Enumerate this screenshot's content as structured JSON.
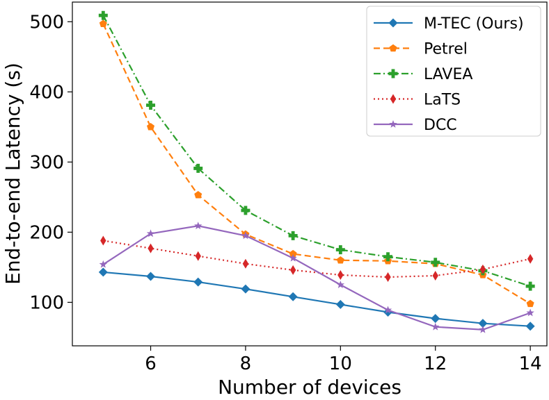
{
  "chart_data": {
    "type": "line",
    "title": "",
    "xlabel": "Number of devices",
    "ylabel": "End-to-end Latency (s)",
    "x": [
      5,
      6,
      7,
      8,
      9,
      10,
      11,
      12,
      13,
      14
    ],
    "xlim": [
      4.35,
      14.35
    ],
    "ylim": [
      38,
      528
    ],
    "xticks": [
      6,
      8,
      10,
      12,
      14
    ],
    "yticks": [
      100,
      200,
      300,
      400,
      500
    ],
    "grid": false,
    "legend_position": "top-right",
    "series": [
      {
        "name": "M-TEC (Ours)",
        "color": "#1f77b4",
        "linestyle": "solid",
        "marker": "diamond",
        "values": [
          143,
          137,
          129,
          119,
          108,
          97,
          86,
          77,
          70,
          66
        ]
      },
      {
        "name": "Petrel",
        "color": "#ff7f0e",
        "linestyle": "dashed",
        "marker": "pentagon",
        "values": [
          497,
          350,
          253,
          197,
          169,
          160,
          159,
          155,
          139,
          98
        ]
      },
      {
        "name": "LAVEA",
        "color": "#2ca02c",
        "linestyle": "dashdot",
        "marker": "plus",
        "values": [
          509,
          381,
          291,
          231,
          195,
          175,
          165,
          157,
          145,
          123
        ]
      },
      {
        "name": "LaTS",
        "color": "#d62728",
        "linestyle": "dotted",
        "marker": "thin-diamond",
        "values": [
          188,
          177,
          166,
          155,
          146,
          139,
          136,
          138,
          147,
          162
        ]
      },
      {
        "name": "DCC",
        "color": "#9467bd",
        "linestyle": "solid",
        "marker": "star",
        "values": [
          154,
          198,
          209,
          195,
          163,
          125,
          89,
          65,
          61,
          85
        ]
      }
    ]
  }
}
